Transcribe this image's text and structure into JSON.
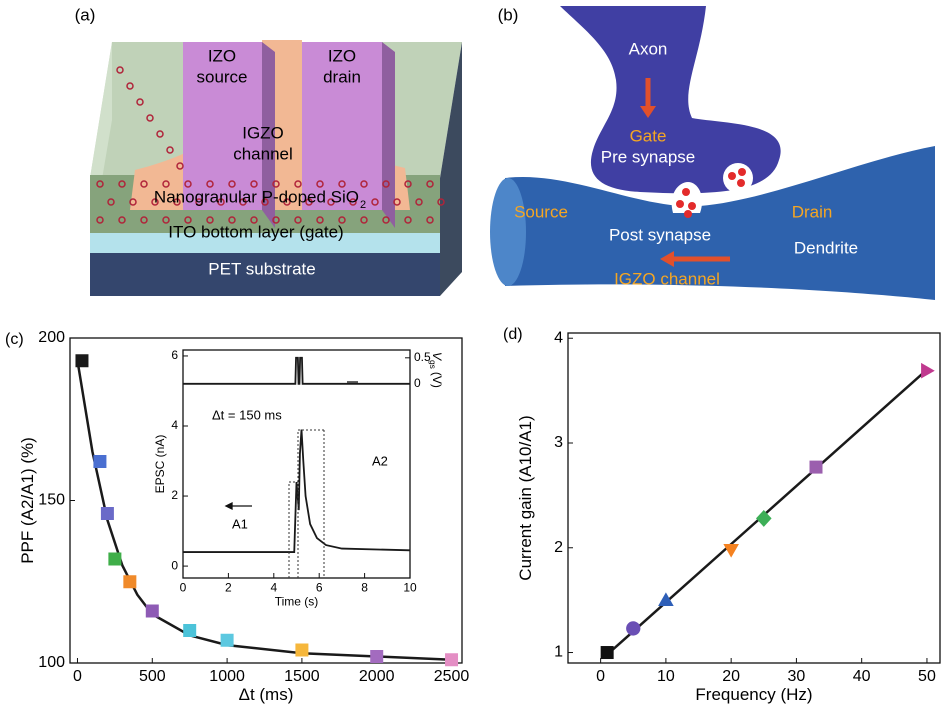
{
  "panels": {
    "a": {
      "label": "(a)",
      "source": [
        "IZO",
        "source"
      ],
      "drain": [
        "IZO",
        "drain"
      ],
      "channel": [
        "IGZO",
        "channel"
      ],
      "dielectric": "Nanogranular P-doped SiO",
      "dielectric_sub": "2",
      "gate": "ITO bottom layer (gate)",
      "substrate": "PET substrate"
    },
    "b": {
      "label": "(b)",
      "axon": "Axon",
      "gate": "Gate",
      "pre": "Pre synapse",
      "source": "Source",
      "drain": "Drain",
      "post": "Post synapse",
      "dendrite": "Dendrite",
      "channel": "IGZO channel"
    }
  },
  "chart_data": [
    {
      "type": "scatter",
      "panel_label": "(c)",
      "xlabel": "Δt (ms)",
      "ylabel": "PPF (A2/A1) (%)",
      "x": [
        30,
        150,
        200,
        250,
        350,
        500,
        750,
        1000,
        1500,
        2000,
        2500
      ],
      "values": [
        193,
        162,
        146,
        132,
        125,
        116,
        110,
        107,
        104,
        102,
        101
      ],
      "colors": [
        "#1a1a1a",
        "#4a6fd1",
        "#6a6ac8",
        "#3fae49",
        "#f08a2a",
        "#8e5bb5",
        "#4cc3d9",
        "#5cc8e0",
        "#f6b73c",
        "#a36bbf",
        "#e48ec4"
      ],
      "marker": "square",
      "fit": {
        "x": [
          0,
          100,
          200,
          300,
          400,
          500,
          750,
          1000,
          1500,
          2000,
          2500
        ],
        "values": [
          193,
          165,
          144,
          130,
          121,
          115,
          108.5,
          105.5,
          103,
          102,
          101
        ],
        "color": "#1a1a1a"
      },
      "xlim": [
        -50,
        2570
      ],
      "xticks": [
        0,
        500,
        1000,
        1500,
        2000,
        2500
      ],
      "ylim": [
        100,
        200
      ],
      "yticks": [
        100,
        150,
        200
      ]
    },
    {
      "type": "line",
      "xlabel": "Time (s)",
      "ylabel": "EPSC (nA)",
      "y2label": {
        "symbol": "V",
        "sub": "gs",
        "unit": "(V)"
      },
      "series": [
        {
          "color": "#1a1a1a",
          "axis": "y2",
          "x": [
            0,
            4.95,
            4.98,
            5.06,
            5.09,
            5.13,
            5.16,
            5.24,
            5.27,
            10
          ],
          "values": [
            0,
            0,
            0.5,
            0.5,
            0,
            0,
            0.5,
            0.5,
            0,
            0
          ]
        },
        {
          "color": "#1a1a1a",
          "x": [
            0,
            4.9,
            5.0,
            5.05,
            5.1,
            5.15,
            5.22,
            5.3,
            5.4,
            5.6,
            5.9,
            6.3,
            7,
            10
          ],
          "values": [
            0.4,
            0.4,
            2.4,
            2.0,
            1.6,
            3.2,
            3.9,
            3.0,
            2.0,
            1.2,
            0.8,
            0.6,
            0.5,
            0.45
          ]
        }
      ],
      "annotations": [
        "Δt = 150 ms",
        "A1",
        "A2"
      ],
      "xlim": [
        0,
        10
      ],
      "xticks": [
        0,
        2,
        4,
        6,
        8,
        10
      ],
      "ylim": [
        -0.34,
        6.17
      ],
      "yticks": [
        0,
        2,
        4,
        6
      ],
      "y2lim": [
        -3.73,
        0.65
      ],
      "y2ticks": [
        0,
        0.5
      ]
    },
    {
      "type": "scatter",
      "panel_label": "(d)",
      "xlabel": "Frequency (Hz)",
      "ylabel": "Current gain (A10/A1)",
      "x": [
        1,
        5,
        10,
        20,
        25,
        33,
        50
      ],
      "values": [
        1.0,
        1.23,
        1.5,
        1.98,
        2.28,
        2.77,
        3.69
      ],
      "colors": [
        "#111111",
        "#6a4fb5",
        "#2e5fb8",
        "#f58220",
        "#3daf57",
        "#9b5fae",
        "#c0398f"
      ],
      "markers": [
        "square",
        "circle",
        "triangle-up",
        "triangle-down",
        "diamond",
        "square",
        "triangle-right"
      ],
      "fit": {
        "x": [
          1,
          50
        ],
        "values": [
          0.98,
          3.7
        ],
        "color": "#1a1a1a"
      },
      "xlim": [
        -5,
        52
      ],
      "xticks": [
        0,
        10,
        20,
        30,
        40,
        50
      ],
      "ylim": [
        0.9,
        4.05
      ],
      "yticks": [
        1,
        2,
        3,
        4
      ]
    }
  ]
}
